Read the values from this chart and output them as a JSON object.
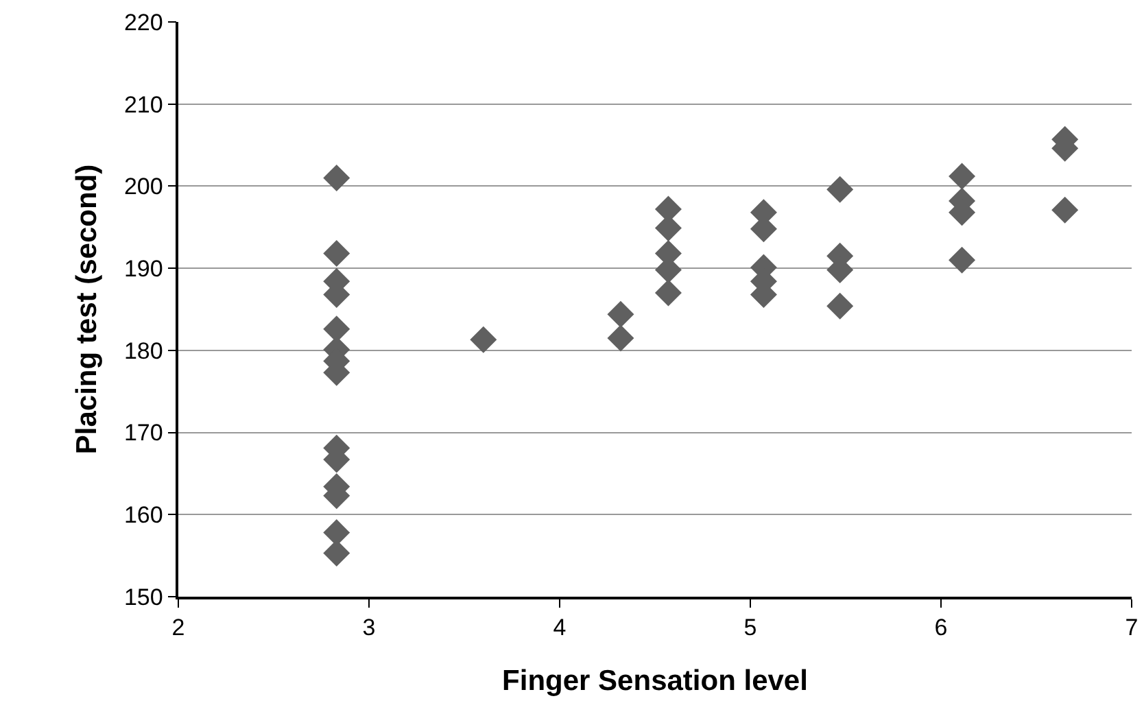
{
  "chart_data": {
    "type": "scatter",
    "xlabel": "Finger Sensation level",
    "ylabel": "Placing test (second)",
    "x": [
      2.83,
      2.83,
      2.83,
      2.83,
      2.83,
      2.83,
      2.83,
      2.83,
      2.83,
      2.83,
      2.83,
      2.83,
      2.83,
      2.83,
      3.6,
      4.32,
      4.32,
      4.57,
      4.57,
      4.57,
      4.57,
      4.57,
      5.07,
      5.07,
      5.07,
      5.07,
      5.07,
      5.47,
      5.47,
      5.47,
      5.47,
      6.11,
      6.11,
      6.11,
      6.11,
      6.65,
      6.65,
      6.65
    ],
    "series": [
      {
        "color": "#606060",
        "values": [
          201,
          191.8,
          188.4,
          186.8,
          182.6,
          180.1,
          178.7,
          177.3,
          168.1,
          166.7,
          163.4,
          162.3,
          157.8,
          155.3,
          181.3,
          184.4,
          181.5,
          197.2,
          194.9,
          191.8,
          189.8,
          187.0,
          196.8,
          194.8,
          190.1,
          188.4,
          186.8,
          199.6,
          191.5,
          189.8,
          185.4,
          201.2,
          198.2,
          196.8,
          191.0,
          205.7,
          204.6,
          197.1
        ]
      }
    ],
    "xlim": [
      2,
      7
    ],
    "xticks": [
      2,
      3,
      4,
      5,
      6,
      7
    ],
    "ylim": [
      150,
      220
    ],
    "yticks": [
      150,
      160,
      170,
      180,
      190,
      200,
      210,
      220
    ],
    "grid": "y",
    "marker": "diamond",
    "legend": false
  }
}
